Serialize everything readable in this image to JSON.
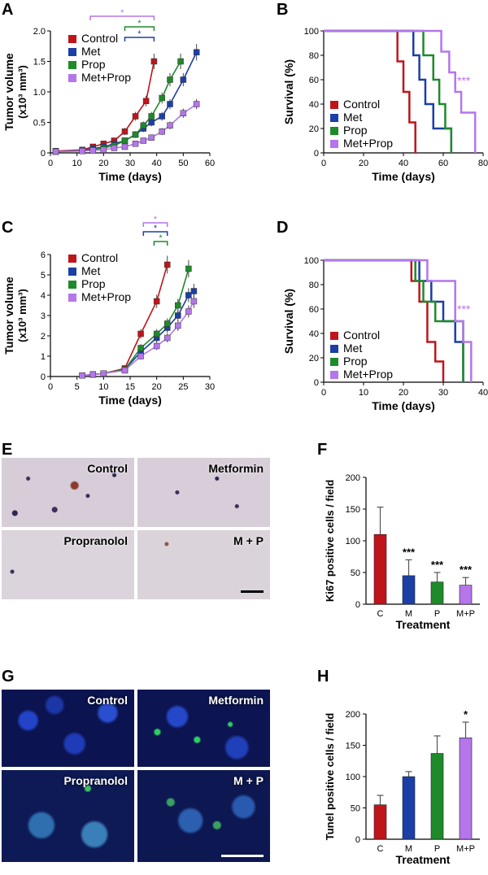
{
  "panels": {
    "A": "A",
    "B": "B",
    "C": "C",
    "D": "D",
    "E": "E",
    "F": "F",
    "G": "G",
    "H": "H"
  },
  "colors": {
    "control": "#c0141b",
    "met": "#1c3fa6",
    "prop": "#1f8a2a",
    "metprop": "#b476ea"
  },
  "histology": {
    "E": {
      "labels": [
        "Control",
        "Metformin",
        "Propranolol",
        "M + P"
      ]
    },
    "G": {
      "labels": [
        "Control",
        "Metformin",
        "Propranolol",
        "M + P"
      ]
    }
  },
  "chart_data": [
    {
      "id": "A",
      "type": "line",
      "xlabel": "Time (days)",
      "ylabel": "Tumor volume",
      "ylabel2": "(x10³ mm³)",
      "xlim": [
        0,
        60
      ],
      "ylim": [
        0,
        2.0
      ],
      "xticks": [
        "0",
        "10",
        "20",
        "30",
        "40",
        "50",
        "60"
      ],
      "yticks": [
        "0",
        "0.5",
        "1.0",
        "1.5",
        "2.0"
      ],
      "legend": [
        "Control",
        "Met",
        "Prop",
        "Met+Prop"
      ],
      "significance": [
        "*",
        "*",
        "*"
      ],
      "series": [
        {
          "name": "Control",
          "x": [
            2,
            12,
            16,
            20,
            24,
            28,
            32,
            36,
            39
          ],
          "y": [
            0.03,
            0.05,
            0.1,
            0.15,
            0.2,
            0.35,
            0.6,
            0.85,
            1.5
          ]
        },
        {
          "name": "Met",
          "x": [
            2,
            12,
            16,
            20,
            24,
            28,
            32,
            35,
            38,
            42,
            45,
            50,
            55
          ],
          "y": [
            0.02,
            0.04,
            0.07,
            0.1,
            0.15,
            0.2,
            0.3,
            0.4,
            0.5,
            0.6,
            0.8,
            1.2,
            1.65
          ]
        },
        {
          "name": "Prop",
          "x": [
            2,
            12,
            16,
            20,
            24,
            28,
            32,
            35,
            38,
            42,
            45,
            49
          ],
          "y": [
            0.02,
            0.03,
            0.05,
            0.08,
            0.12,
            0.2,
            0.3,
            0.45,
            0.6,
            0.9,
            1.2,
            1.5
          ]
        },
        {
          "name": "Met+Prop",
          "x": [
            2,
            12,
            16,
            20,
            24,
            28,
            32,
            35,
            38,
            42,
            45,
            50,
            55
          ],
          "y": [
            0.02,
            0.03,
            0.04,
            0.05,
            0.08,
            0.1,
            0.15,
            0.2,
            0.25,
            0.35,
            0.45,
            0.65,
            0.8
          ]
        }
      ]
    },
    {
      "id": "B",
      "type": "line",
      "xlabel": "Time (days)",
      "ylabel": "Survival (%)",
      "xlim": [
        0,
        80
      ],
      "ylim": [
        0,
        100
      ],
      "xticks": [
        "0",
        "20",
        "40",
        "60",
        "80"
      ],
      "yticks": [
        "0",
        "20",
        "40",
        "60",
        "80",
        "100"
      ],
      "legend": [
        "Control",
        "Met",
        "Prop",
        "Met+Prop"
      ],
      "significance": [
        "***"
      ],
      "series": [
        {
          "name": "Control",
          "x": [
            0,
            37,
            40,
            43,
            46
          ],
          "y": [
            100,
            75,
            50,
            25,
            0
          ]
        },
        {
          "name": "Met",
          "x": [
            0,
            45,
            48,
            51,
            55,
            58,
            64
          ],
          "y": [
            100,
            80,
            60,
            40,
            20,
            20,
            0
          ]
        },
        {
          "name": "Prop",
          "x": [
            0,
            50,
            55,
            58,
            61,
            64
          ],
          "y": [
            100,
            80,
            60,
            40,
            20,
            0
          ]
        },
        {
          "name": "Met+Prop",
          "x": [
            0,
            59,
            63,
            66,
            69,
            76
          ],
          "y": [
            100,
            83,
            66,
            50,
            33,
            0
          ]
        }
      ]
    },
    {
      "id": "C",
      "type": "line",
      "xlabel": "Time (days)",
      "ylabel": "Tumor volume",
      "ylabel2": "(x10³ mm³)",
      "xlim": [
        0,
        30
      ],
      "ylim": [
        0,
        6
      ],
      "xticks": [
        "0",
        "5",
        "10",
        "15",
        "20",
        "25",
        "30"
      ],
      "yticks": [
        "0",
        "1",
        "2",
        "3",
        "4",
        "5",
        "6"
      ],
      "legend": [
        "Control",
        "Met",
        "Prop",
        "Met+Prop"
      ],
      "significance": [
        "*",
        "*",
        "*"
      ],
      "series": [
        {
          "name": "Control",
          "x": [
            6,
            8,
            10,
            14,
            17,
            20,
            22
          ],
          "y": [
            0.05,
            0.1,
            0.15,
            0.4,
            2.1,
            3.7,
            5.5
          ]
        },
        {
          "name": "Met",
          "x": [
            6,
            8,
            10,
            14,
            17,
            20,
            22,
            24,
            26,
            27
          ],
          "y": [
            0.05,
            0.1,
            0.15,
            0.35,
            1.2,
            1.9,
            2.4,
            3.0,
            4.0,
            4.2
          ]
        },
        {
          "name": "Prop",
          "x": [
            6,
            8,
            10,
            14,
            17,
            20,
            22,
            24,
            26
          ],
          "y": [
            0.05,
            0.1,
            0.15,
            0.35,
            1.4,
            2.1,
            2.6,
            3.5,
            5.3
          ]
        },
        {
          "name": "Met+Prop",
          "x": [
            6,
            8,
            10,
            14,
            17,
            20,
            22,
            24,
            26,
            27
          ],
          "y": [
            0.05,
            0.1,
            0.15,
            0.3,
            1.0,
            1.5,
            1.9,
            2.5,
            3.2,
            3.7
          ]
        }
      ]
    },
    {
      "id": "D",
      "type": "line",
      "xlabel": "Time (days)",
      "ylabel": "Survival (%)",
      "xlim": [
        0,
        40
      ],
      "ylim": [
        0,
        100
      ],
      "xticks": [
        "0",
        "10",
        "20",
        "30",
        "40"
      ],
      "yticks": [
        "0",
        "20",
        "40",
        "60",
        "80",
        "100"
      ],
      "legend": [
        "Control",
        "Met",
        "Prop",
        "Met+Prop"
      ],
      "significance": [
        "***"
      ],
      "series": [
        {
          "name": "Control",
          "x": [
            0,
            22,
            24,
            26,
            28,
            30
          ],
          "y": [
            100,
            83,
            66,
            33,
            17,
            0
          ]
        },
        {
          "name": "Met",
          "x": [
            0,
            24,
            27,
            30,
            33,
            35
          ],
          "y": [
            100,
            83,
            66,
            50,
            33,
            0
          ]
        },
        {
          "name": "Prop",
          "x": [
            0,
            23,
            25,
            28,
            31,
            35
          ],
          "y": [
            100,
            83,
            66,
            50,
            50,
            0
          ]
        },
        {
          "name": "Met+Prop",
          "x": [
            0,
            26,
            30,
            33,
            35,
            37
          ],
          "y": [
            100,
            83,
            83,
            50,
            33,
            0
          ]
        }
      ]
    },
    {
      "id": "F",
      "type": "bar",
      "xlabel": "Treatment",
      "ylabel": "Ki67 positive cells / field",
      "ylim": [
        0,
        200
      ],
      "yticks": [
        "0",
        "50",
        "100",
        "150",
        "200"
      ],
      "categories": [
        "C",
        "M",
        "P",
        "M+P"
      ],
      "values": [
        110,
        45,
        35,
        30
      ],
      "errors": [
        43,
        25,
        15,
        12
      ],
      "annotations": [
        "",
        "***",
        "***",
        "***"
      ]
    },
    {
      "id": "H",
      "type": "bar",
      "xlabel": "Treatment",
      "ylabel": "Tunel positive cells / field",
      "ylim": [
        0,
        200
      ],
      "yticks": [
        "0",
        "50",
        "100",
        "150",
        "200"
      ],
      "categories": [
        "C",
        "M",
        "P",
        "M+P"
      ],
      "values": [
        55,
        100,
        137,
        162
      ],
      "errors": [
        15,
        8,
        28,
        25
      ],
      "annotations": [
        "",
        "",
        "",
        "*"
      ]
    }
  ]
}
